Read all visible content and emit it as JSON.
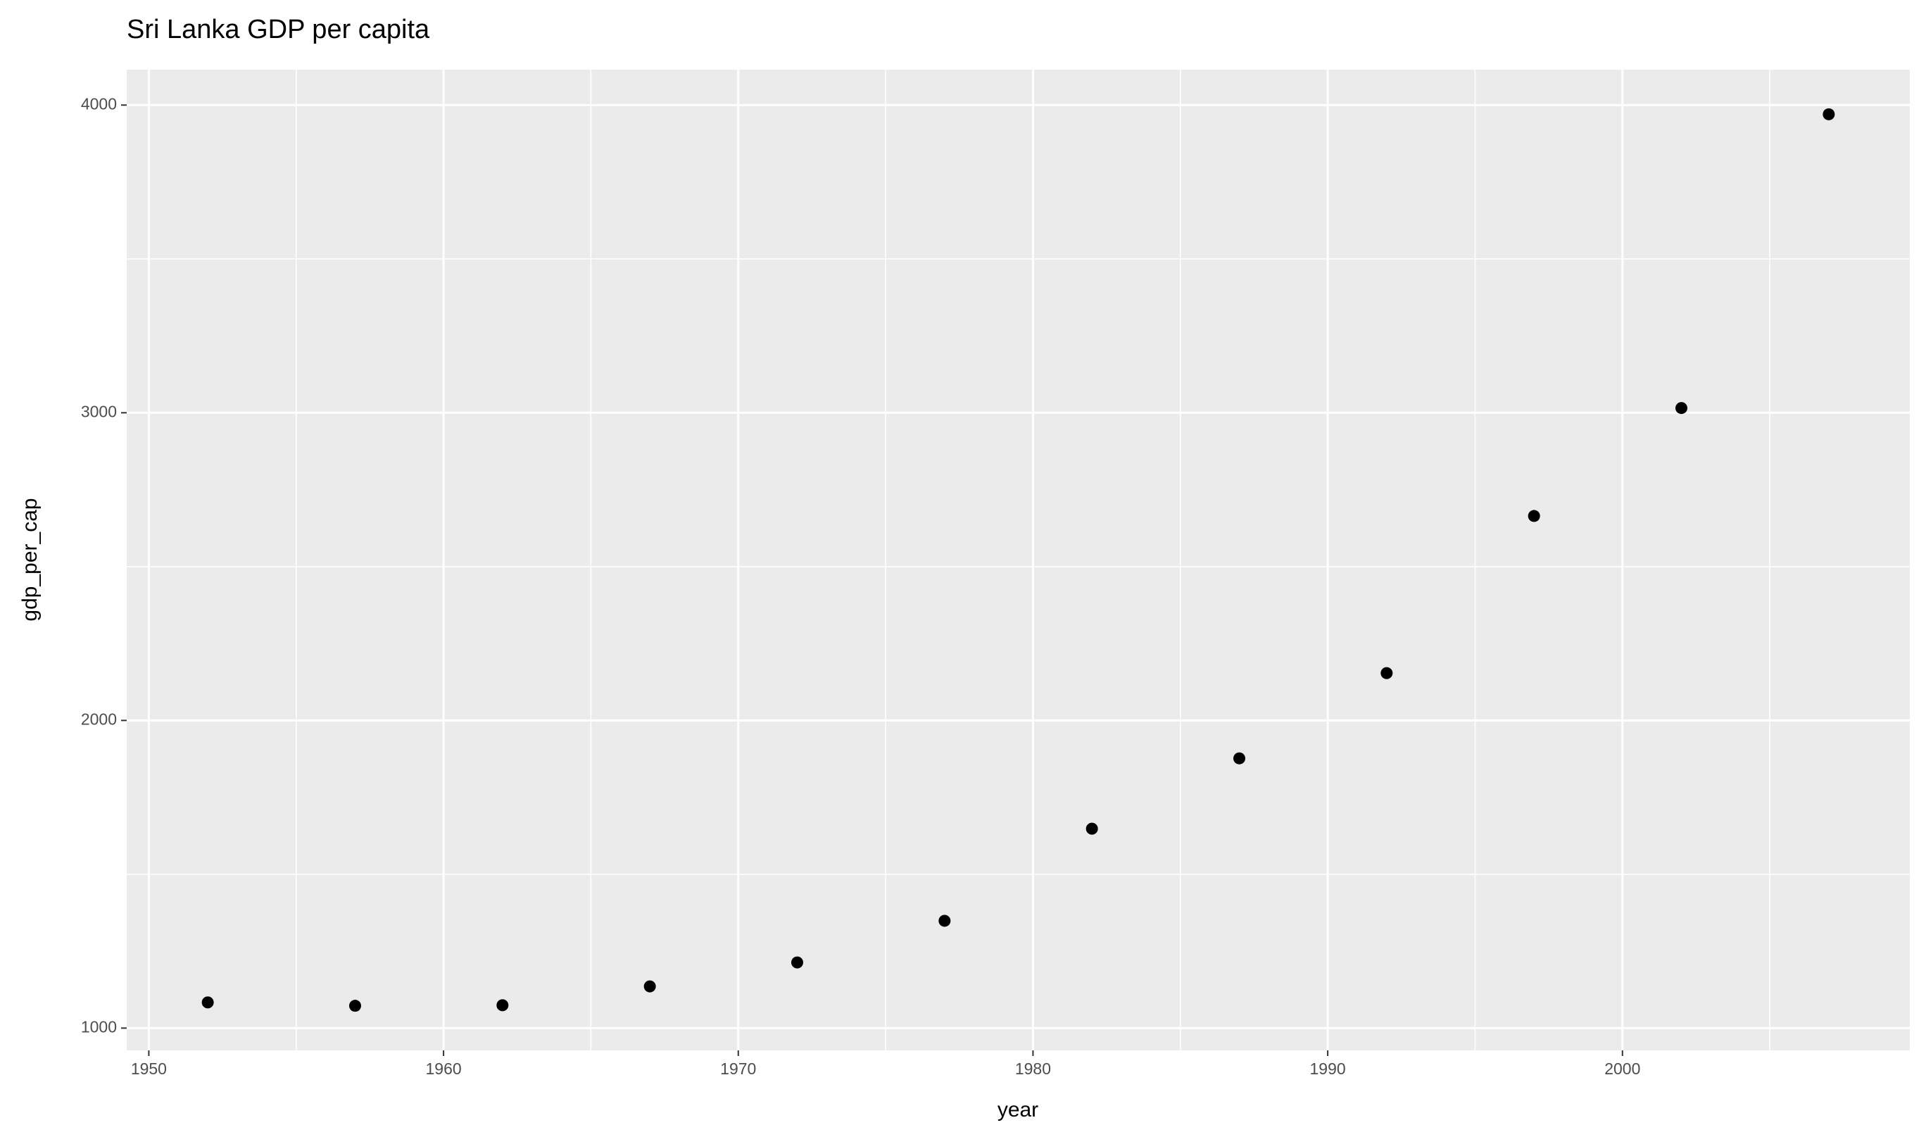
{
  "chart_data": {
    "type": "scatter",
    "title": "Sri Lanka GDP per capita",
    "x_label": "year",
    "y_label": "gdp_per_cap",
    "x": [
      1952,
      1957,
      1962,
      1967,
      1972,
      1977,
      1982,
      1987,
      1992,
      1997,
      2002,
      2007
    ],
    "series": [
      {
        "name": "gdp_per_cap",
        "color": "#000000",
        "values": [
          1083.53,
          1072.55,
          1074.47,
          1135.51,
          1213.4,
          1348.78,
          1648.08,
          1876.77,
          2153.74,
          2664.48,
          3015.38,
          3970.1
        ]
      }
    ],
    "xlim": [
      1949.25,
      2009.75
    ],
    "ylim": [
      927.67,
      4114.98
    ],
    "xticks": [
      1950,
      1960,
      1970,
      1980,
      1990,
      2000
    ],
    "yticks": [
      1000,
      2000,
      3000,
      4000
    ],
    "xminorticks": [
      1955,
      1965,
      1975,
      1985,
      1995,
      2005
    ],
    "yminorticks": [
      1500,
      2500,
      3500
    ],
    "grid": true
  }
}
